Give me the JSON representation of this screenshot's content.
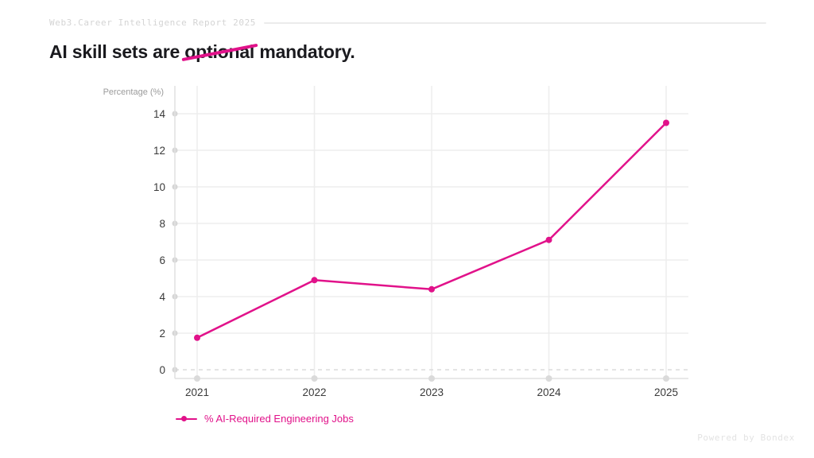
{
  "header": {
    "report_label": "Web3.Career Intelligence Report 2025"
  },
  "title": {
    "prefix": "AI skill sets are",
    "struck_word": "optional",
    "suffix": "mandatory."
  },
  "chart_data": {
    "type": "line",
    "x": [
      "2021",
      "2022",
      "2023",
      "2024",
      "2025"
    ],
    "series": [
      {
        "name": "% AI-Required Engineering Jobs",
        "values": [
          1.75,
          4.9,
          4.4,
          7.1,
          13.5
        ]
      }
    ],
    "ylabel": "Percentage (%)",
    "yticks": [
      0,
      2,
      4,
      6,
      8,
      10,
      12,
      14
    ],
    "ylim": [
      0,
      14.8
    ],
    "grid": true,
    "zero_line_style": "dashed",
    "legend_position": "bottom-left"
  },
  "footer": {
    "credit": "Powered by Bondex"
  },
  "colors": {
    "accent_pink": "#E1128A",
    "title_text": "#1A1A1E",
    "header_text": "#D4D4D4",
    "footer_text": "#E3E3E3",
    "tick_text": "#3A3A3A",
    "axis_label_text": "#9B9B9B",
    "grid_line": "#EDEDED",
    "axis_line": "#E0E0E0",
    "tick_dot": "#D6D6D6"
  }
}
